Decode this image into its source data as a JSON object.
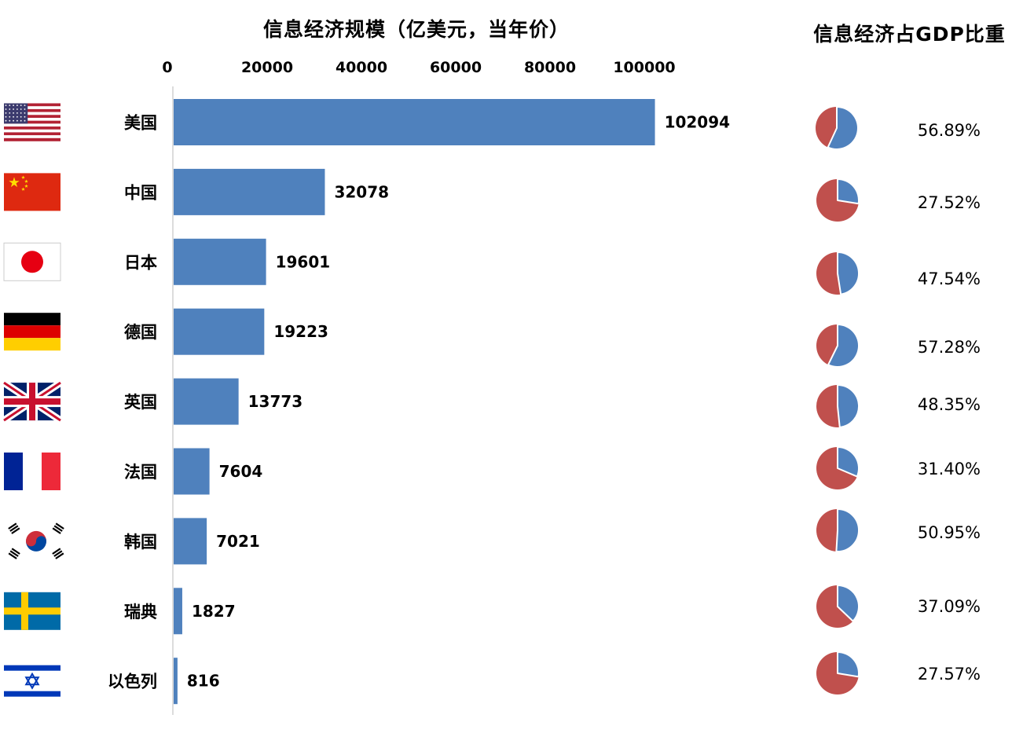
{
  "chart_data": [
    {
      "type": "bar",
      "orientation": "horizontal",
      "title": "信息经济规模（亿美元，当年价）",
      "xlabel": "",
      "ylabel": "",
      "xlim": [
        0,
        100000
      ],
      "xticks": [
        "0",
        "20000",
        "40000",
        "60000",
        "80000",
        "100000"
      ],
      "axis_position": "top",
      "grid": false,
      "categories": [
        "美国",
        "中国",
        "日本",
        "德国",
        "英国",
        "法国",
        "韩国",
        "瑞典",
        "以色列"
      ],
      "values": [
        102094,
        32078,
        19601,
        19223,
        13773,
        7604,
        7021,
        1827,
        816
      ],
      "data_labels": [
        "102094",
        "32078",
        "19601",
        "19223",
        "13773",
        "7604",
        "7021",
        "1827",
        "816"
      ],
      "bar_color": "#4f81bd"
    },
    {
      "type": "pie",
      "title": "信息经济占GDP比重",
      "categories": [
        "美国",
        "中国",
        "日本",
        "德国",
        "英国",
        "法国",
        "韩国",
        "瑞典",
        "以色列"
      ],
      "values": [
        56.89,
        27.52,
        47.54,
        57.28,
        48.35,
        31.4,
        50.95,
        37.09,
        27.57
      ],
      "labels": [
        "56.89%",
        "27.52%",
        "47.54%",
        "57.28%",
        "48.35%",
        "31.40%",
        "50.95%",
        "37.09%",
        "27.57%"
      ],
      "share_color": "#4f81bd",
      "rest_color": "#c0504d"
    }
  ],
  "flags": [
    "us-flag-icon",
    "cn-flag-icon",
    "jp-flag-icon",
    "de-flag-icon",
    "gb-flag-icon",
    "fr-flag-icon",
    "kr-flag-icon",
    "se-flag-icon",
    "il-flag-icon"
  ]
}
